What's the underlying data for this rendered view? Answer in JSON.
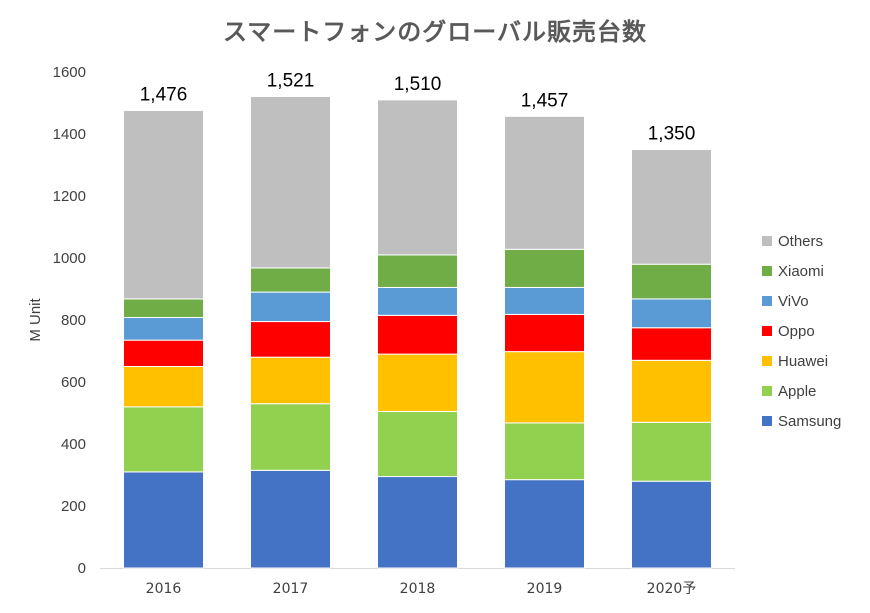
{
  "chart_data": {
    "type": "bar",
    "stacked": true,
    "title": "スマートフォンのグローバル販売台数",
    "ylabel": "M Unit",
    "xlabel": "",
    "ylim": [
      0,
      1600
    ],
    "yticks": [
      0,
      200,
      400,
      600,
      800,
      1000,
      1200,
      1400,
      1600
    ],
    "grid": false,
    "legend_position": "right",
    "categories": [
      "2016",
      "2017",
      "2018",
      "2019",
      "2020予"
    ],
    "totals": [
      "1,476",
      "1,521",
      "1,510",
      "1,457",
      "1,350"
    ],
    "series": [
      {
        "name": "Samsung",
        "color": "#4472C4",
        "values": [
          310,
          315,
          295,
          285,
          280
        ]
      },
      {
        "name": "Apple",
        "color": "#92D050",
        "values": [
          210,
          215,
          210,
          183,
          190
        ]
      },
      {
        "name": "Huawei",
        "color": "#FFC000",
        "values": [
          130,
          150,
          185,
          230,
          200
        ]
      },
      {
        "name": "Oppo",
        "color": "#FF0000",
        "values": [
          85,
          115,
          125,
          120,
          105
        ]
      },
      {
        "name": "ViVo",
        "color": "#5B9BD5",
        "values": [
          73,
          95,
          90,
          87,
          93
        ]
      },
      {
        "name": "Xiaomi",
        "color": "#70AD47",
        "values": [
          60,
          78,
          105,
          123,
          112
        ]
      },
      {
        "name": "Others",
        "color": "#BFBFBF",
        "values": [
          608,
          553,
          500,
          429,
          370
        ]
      }
    ]
  }
}
